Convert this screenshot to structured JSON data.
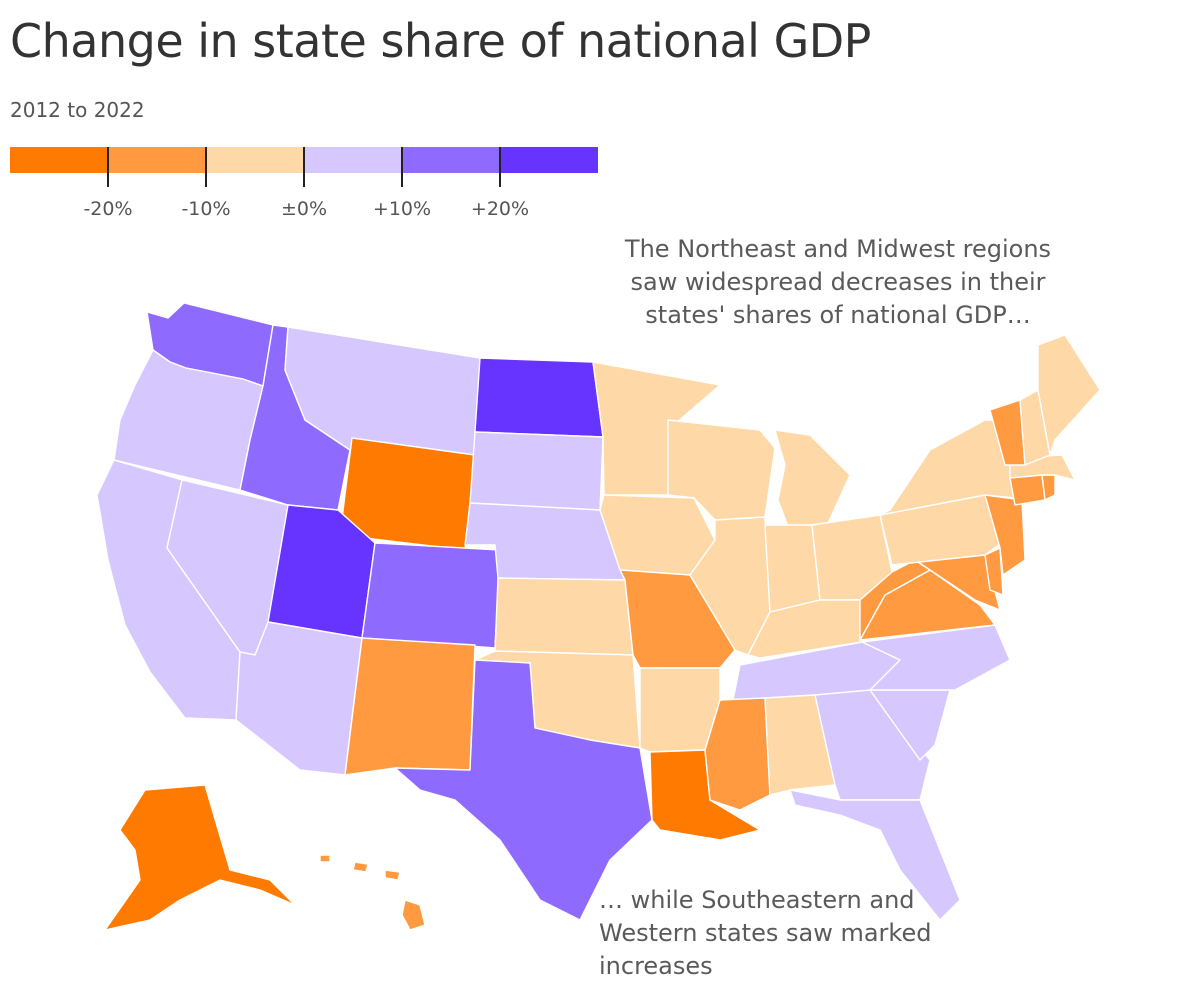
{
  "title": "Change in state share of national GDP",
  "subtitle": "2012 to 2022",
  "legend": {
    "bins": [
      {
        "range": "< -20%",
        "color": "#ff7a00"
      },
      {
        "range": "-20% to -10%",
        "color": "#ff9a40"
      },
      {
        "range": "-10% to 0%",
        "color": "#ffd8a8"
      },
      {
        "range": "0% to +10%",
        "color": "#d6c8ff"
      },
      {
        "range": "+10% to +20%",
        "color": "#8f6aff"
      },
      {
        "range": "> +20%",
        "color": "#6633ff"
      }
    ],
    "tick_labels": [
      "-20%",
      "-10%",
      "±0%",
      "+10%",
      "+20%"
    ]
  },
  "annotations": {
    "northeast": "The Northeast and Midwest regions saw widespread decreases in their states' shares of national GDP…",
    "southwest": "… while Southeastern and Western states saw marked increases"
  },
  "chart_data": {
    "type": "choropleth",
    "title": "Change in state share of national GDP",
    "subtitle": "2012 to 2022",
    "bins": [
      "< -20%",
      "-20% to -10%",
      "-10% to 0%",
      "0% to +10%",
      "+10% to +20%",
      "> +20%"
    ],
    "states": [
      {
        "code": "WA",
        "bin": 4
      },
      {
        "code": "OR",
        "bin": 3
      },
      {
        "code": "CA",
        "bin": 3
      },
      {
        "code": "NV",
        "bin": 3
      },
      {
        "code": "ID",
        "bin": 4
      },
      {
        "code": "MT",
        "bin": 3
      },
      {
        "code": "WY",
        "bin": 0
      },
      {
        "code": "UT",
        "bin": 5
      },
      {
        "code": "CO",
        "bin": 4
      },
      {
        "code": "AZ",
        "bin": 3
      },
      {
        "code": "NM",
        "bin": 1
      },
      {
        "code": "ND",
        "bin": 5
      },
      {
        "code": "SD",
        "bin": 3
      },
      {
        "code": "NE",
        "bin": 3
      },
      {
        "code": "KS",
        "bin": 2
      },
      {
        "code": "OK",
        "bin": 2
      },
      {
        "code": "TX",
        "bin": 4
      },
      {
        "code": "MN",
        "bin": 2
      },
      {
        "code": "IA",
        "bin": 2
      },
      {
        "code": "MO",
        "bin": 1
      },
      {
        "code": "AR",
        "bin": 2
      },
      {
        "code": "LA",
        "bin": 0
      },
      {
        "code": "WI",
        "bin": 2
      },
      {
        "code": "IL",
        "bin": 2
      },
      {
        "code": "MI",
        "bin": 2
      },
      {
        "code": "IN",
        "bin": 2
      },
      {
        "code": "OH",
        "bin": 2
      },
      {
        "code": "KY",
        "bin": 2
      },
      {
        "code": "TN",
        "bin": 3
      },
      {
        "code": "MS",
        "bin": 1
      },
      {
        "code": "AL",
        "bin": 2
      },
      {
        "code": "GA",
        "bin": 3
      },
      {
        "code": "FL",
        "bin": 3
      },
      {
        "code": "SC",
        "bin": 3
      },
      {
        "code": "NC",
        "bin": 3
      },
      {
        "code": "VA",
        "bin": 1
      },
      {
        "code": "WV",
        "bin": 1
      },
      {
        "code": "MD",
        "bin": 1
      },
      {
        "code": "DE",
        "bin": 1
      },
      {
        "code": "PA",
        "bin": 2
      },
      {
        "code": "NJ",
        "bin": 1
      },
      {
        "code": "NY",
        "bin": 2
      },
      {
        "code": "CT",
        "bin": 1
      },
      {
        "code": "RI",
        "bin": 1
      },
      {
        "code": "MA",
        "bin": 2
      },
      {
        "code": "VT",
        "bin": 1
      },
      {
        "code": "NH",
        "bin": 2
      },
      {
        "code": "ME",
        "bin": 2
      },
      {
        "code": "AK",
        "bin": 0
      },
      {
        "code": "HI",
        "bin": 1
      }
    ]
  }
}
